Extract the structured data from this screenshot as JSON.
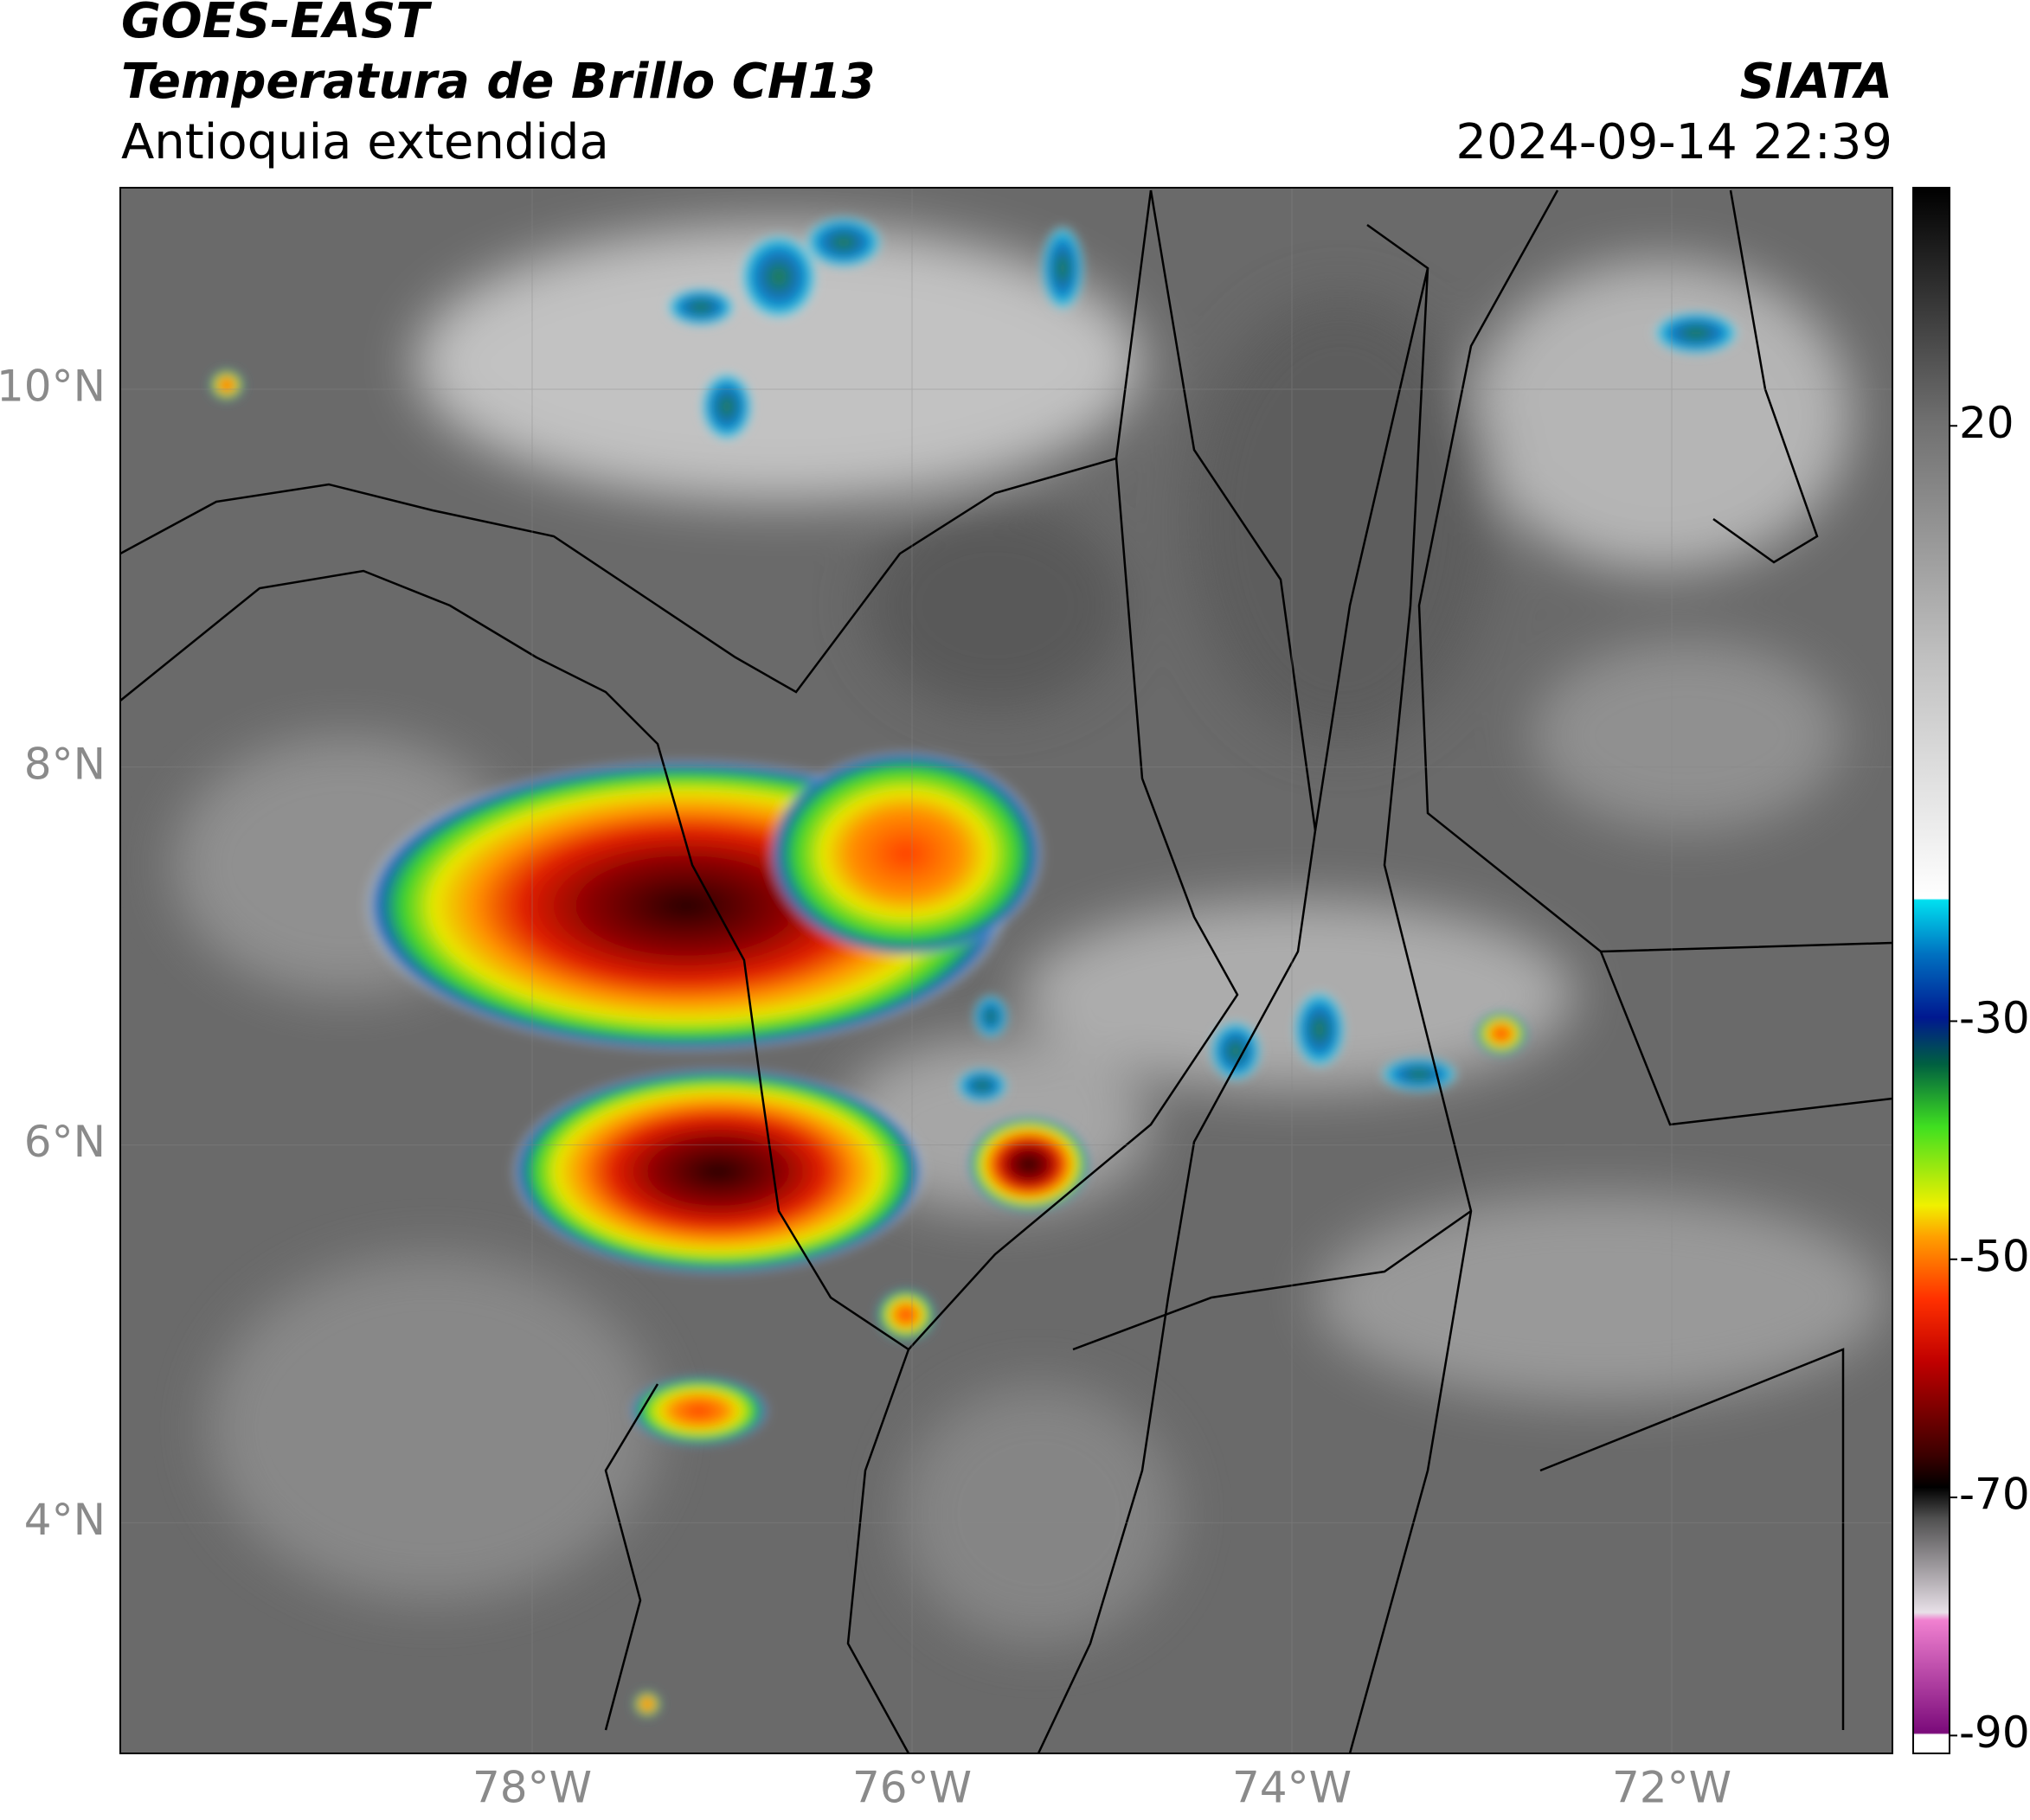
{
  "header": {
    "satellite": "GOES-EAST",
    "product": "Temperatura de Brillo CH13",
    "region": "Antioquia extendida",
    "source": "SIATA",
    "datetime": "2024-09-14 22:39"
  },
  "map": {
    "lat_ticks": [
      {
        "value": 10,
        "label": "10°N"
      },
      {
        "value": 8,
        "label": "8°N"
      },
      {
        "value": 6,
        "label": "6°N"
      },
      {
        "value": 4,
        "label": "4°N"
      }
    ],
    "lon_ticks": [
      {
        "value": -78,
        "label": "78°W"
      },
      {
        "value": -76,
        "label": "76°W"
      },
      {
        "value": -74,
        "label": "74°W"
      },
      {
        "value": -72,
        "label": "72°W"
      }
    ]
  },
  "colorbar": {
    "ticks": [
      20,
      -30,
      -50,
      -70,
      -90
    ]
  }
}
